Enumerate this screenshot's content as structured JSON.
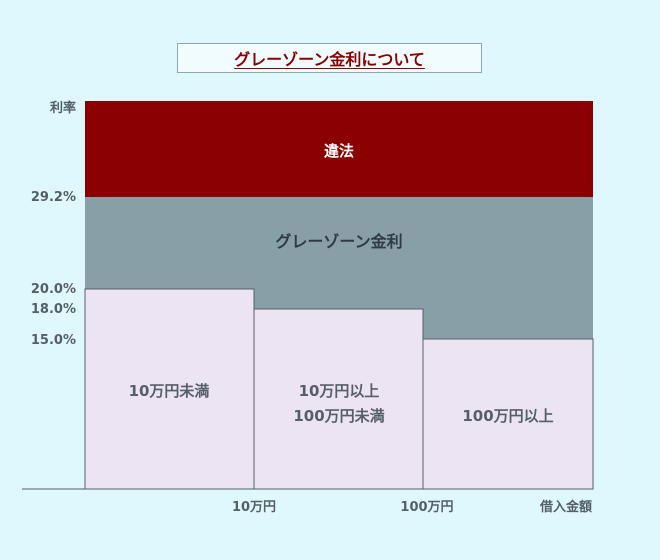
{
  "title": "グレーゾーン金利について",
  "axes": {
    "y_label": "利率",
    "x_label": "借入金額",
    "y_ticks": [
      "29.2%",
      "20.0%",
      "18.0%",
      "15.0%"
    ],
    "x_ticks": [
      "10万円",
      "100万円"
    ]
  },
  "zones": {
    "illegal": "違法",
    "gray": "グレーゾーン金利"
  },
  "bands": [
    {
      "line1": "10万円未満",
      "line2": "",
      "rate": 20.0
    },
    {
      "line1": "10万円以上",
      "line2": "100万円未満",
      "rate": 18.0
    },
    {
      "line1": "100万円以上",
      "line2": "",
      "rate": 15.0
    }
  ],
  "colors": {
    "illegal": "#8b0000",
    "gray": "#889fa8",
    "band": "#ede4f3",
    "label": "#555f69",
    "background": "#dff8fd"
  }
}
